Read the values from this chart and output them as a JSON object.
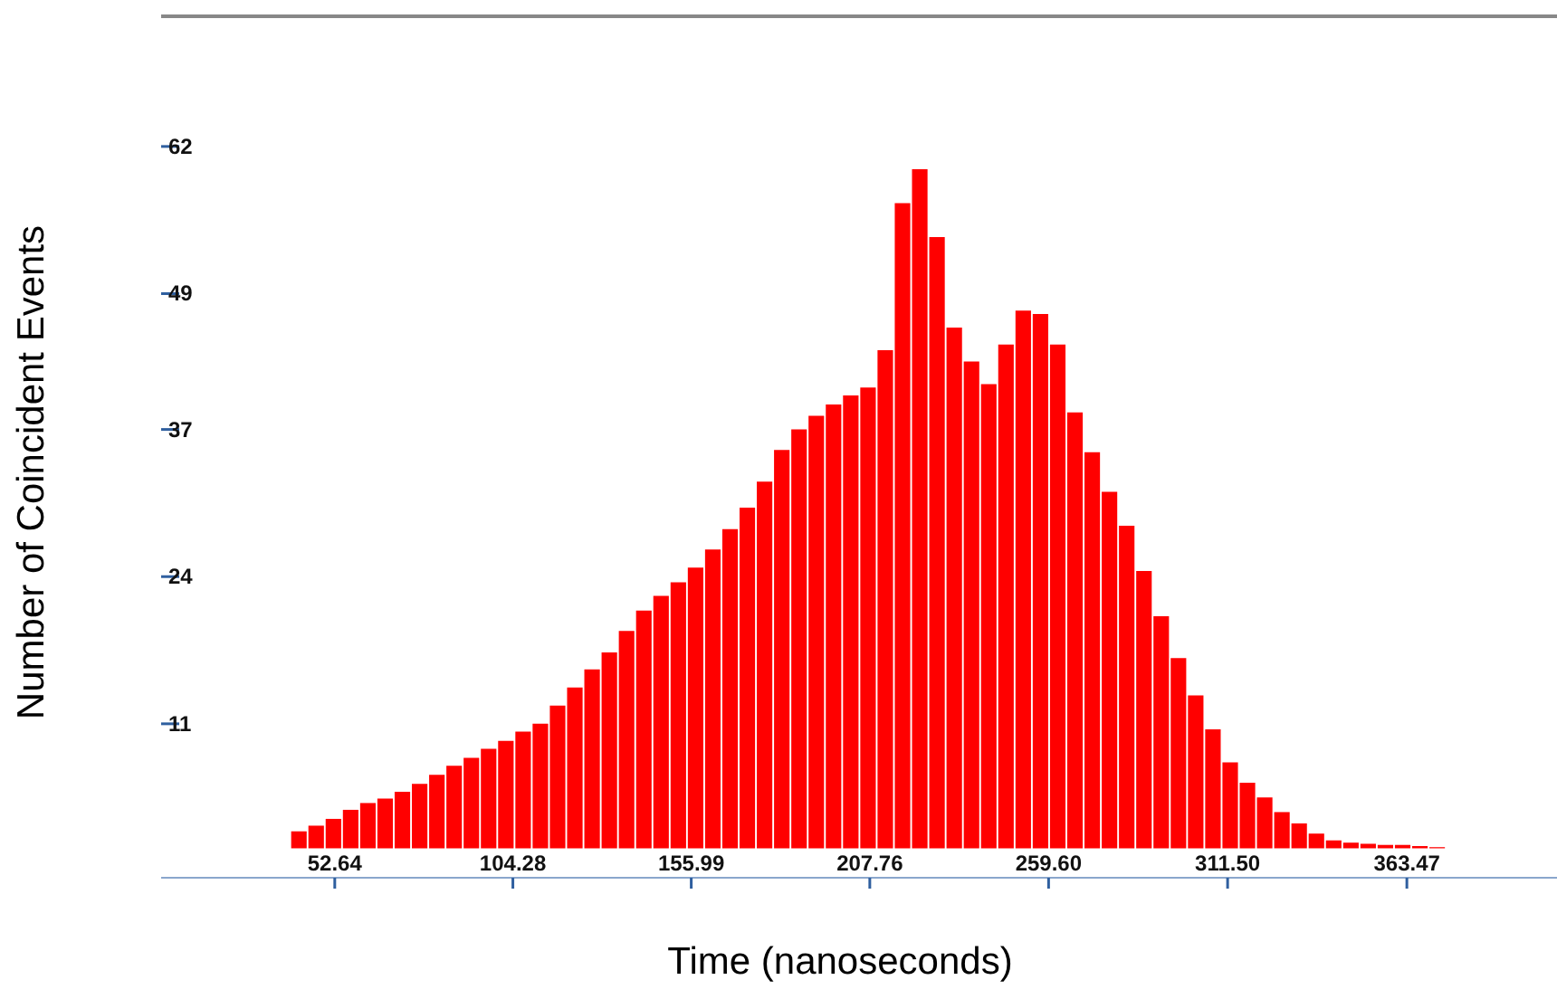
{
  "chart_data": {
    "type": "histogram",
    "xlabel": "Time (nanoseconds)",
    "ylabel": "Number of Coincident Events",
    "color": "#ff0000",
    "bins": [
      40,
      45,
      50,
      55,
      60,
      65,
      70,
      75,
      80,
      85,
      90,
      95,
      100,
      105,
      110,
      115,
      120,
      125,
      130,
      135,
      140,
      145,
      150,
      155,
      160,
      165,
      170,
      175,
      180,
      185,
      190,
      195,
      200,
      205,
      210,
      215,
      220,
      225,
      230,
      235,
      240,
      245,
      250,
      255,
      260,
      265,
      270,
      275,
      280,
      285,
      290,
      295,
      300,
      305,
      310,
      315,
      320,
      325,
      330,
      335,
      340,
      345,
      350,
      355,
      360,
      365,
      370,
      375
    ],
    "values": [
      1.5,
      2,
      2.6,
      3.4,
      4,
      4.4,
      5,
      5.7,
      6.5,
      7.3,
      8,
      8.8,
      9.5,
      10.3,
      11,
      12.6,
      14.2,
      15.8,
      17.3,
      19.2,
      21,
      22.3,
      23.5,
      24.8,
      26.4,
      28.2,
      30.1,
      32.4,
      35.2,
      37,
      38.2,
      39.2,
      40,
      40.7,
      44,
      57,
      60,
      54,
      46,
      43,
      41,
      44.5,
      47.5,
      47.2,
      44.5,
      38.5,
      35,
      31.5,
      28.5,
      24.5,
      20.5,
      16.8,
      13.5,
      10.5,
      7.6,
      5.8,
      4.5,
      3.2,
      2.2,
      1.3,
      0.7,
      0.5,
      0.4,
      0.3,
      0.3,
      0.2,
      0.1
    ],
    "xlim": [
      2.3,
      407
    ],
    "xticks": [
      {
        "value": 52.64,
        "label": "52.64"
      },
      {
        "value": 104.28,
        "label": "104.28"
      },
      {
        "value": 155.99,
        "label": "155.99"
      },
      {
        "value": 207.76,
        "label": "207.76"
      },
      {
        "value": 259.6,
        "label": "259.60"
      },
      {
        "value": 311.5,
        "label": "311.50"
      },
      {
        "value": 363.47,
        "label": "363.47"
      }
    ],
    "ylim": [
      -2.6,
      73.5
    ],
    "yticks": [
      62,
      49,
      37,
      24,
      11
    ],
    "grid": false,
    "legend": false
  }
}
